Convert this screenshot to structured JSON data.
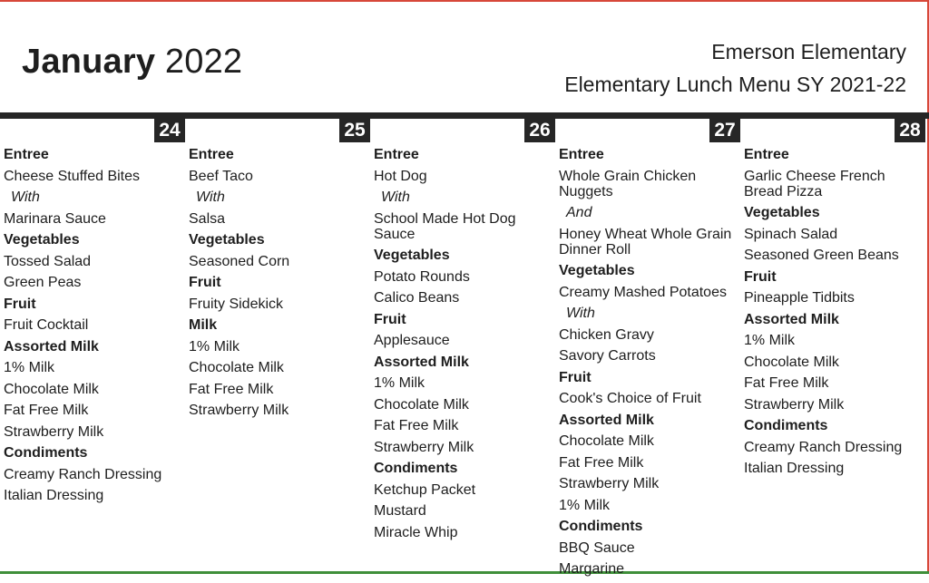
{
  "header": {
    "month": "January",
    "year": "2022",
    "school": "Emerson Elementary",
    "menu_title": "Elementary Lunch Menu SY 2021-22"
  },
  "colors": {
    "bar": "#262626",
    "accent_top": "#d7483a",
    "accent_right": "#d7483a",
    "accent_bottom": "#3f8f3a"
  },
  "days": [
    {
      "date": "24",
      "items": [
        {
          "text": "Entree",
          "kind": "head"
        },
        {
          "text": "Cheese Stuffed Bites",
          "kind": "item"
        },
        {
          "text": "With",
          "kind": "conn"
        },
        {
          "text": "Marinara Sauce",
          "kind": "item"
        },
        {
          "text": "Vegetables",
          "kind": "head"
        },
        {
          "text": "Tossed Salad",
          "kind": "item"
        },
        {
          "text": "Green Peas",
          "kind": "item"
        },
        {
          "text": "Fruit",
          "kind": "head"
        },
        {
          "text": "Fruit Cocktail",
          "kind": "item"
        },
        {
          "text": "Assorted Milk",
          "kind": "head"
        },
        {
          "text": "1% Milk",
          "kind": "item"
        },
        {
          "text": "Chocolate Milk",
          "kind": "item"
        },
        {
          "text": "Fat Free Milk",
          "kind": "item"
        },
        {
          "text": "Strawberry Milk",
          "kind": "item"
        },
        {
          "text": "Condiments",
          "kind": "head"
        },
        {
          "text": "Creamy Ranch Dressing",
          "kind": "item"
        },
        {
          "text": "Italian Dressing",
          "kind": "item"
        }
      ]
    },
    {
      "date": "25",
      "items": [
        {
          "text": "Entree",
          "kind": "head"
        },
        {
          "text": "Beef Taco",
          "kind": "item"
        },
        {
          "text": "With",
          "kind": "conn"
        },
        {
          "text": "Salsa",
          "kind": "item"
        },
        {
          "text": "Vegetables",
          "kind": "head"
        },
        {
          "text": "Seasoned Corn",
          "kind": "item"
        },
        {
          "text": "Fruit",
          "kind": "head"
        },
        {
          "text": "Fruity Sidekick",
          "kind": "item"
        },
        {
          "text": "Milk",
          "kind": "head"
        },
        {
          "text": "1% Milk",
          "kind": "item"
        },
        {
          "text": "Chocolate Milk",
          "kind": "item"
        },
        {
          "text": "Fat Free Milk",
          "kind": "item"
        },
        {
          "text": "Strawberry Milk",
          "kind": "item"
        }
      ]
    },
    {
      "date": "26",
      "items": [
        {
          "text": "Entree",
          "kind": "head"
        },
        {
          "text": "Hot Dog",
          "kind": "item"
        },
        {
          "text": "With",
          "kind": "conn"
        },
        {
          "text": "School Made Hot Dog Sauce",
          "kind": "item"
        },
        {
          "text": "Vegetables",
          "kind": "head"
        },
        {
          "text": "Potato Rounds",
          "kind": "item"
        },
        {
          "text": "Calico Beans",
          "kind": "item"
        },
        {
          "text": "Fruit",
          "kind": "head"
        },
        {
          "text": "Applesauce",
          "kind": "item"
        },
        {
          "text": "Assorted Milk",
          "kind": "head"
        },
        {
          "text": "1% Milk",
          "kind": "item"
        },
        {
          "text": "Chocolate Milk",
          "kind": "item"
        },
        {
          "text": "Fat Free Milk",
          "kind": "item"
        },
        {
          "text": "Strawberry Milk",
          "kind": "item"
        },
        {
          "text": "Condiments",
          "kind": "head"
        },
        {
          "text": "Ketchup Packet",
          "kind": "item"
        },
        {
          "text": "Mustard",
          "kind": "item"
        },
        {
          "text": "Miracle Whip",
          "kind": "item"
        }
      ]
    },
    {
      "date": "27",
      "items": [
        {
          "text": "Entree",
          "kind": "head"
        },
        {
          "text": "Whole Grain Chicken Nuggets",
          "kind": "item"
        },
        {
          "text": "And",
          "kind": "conn"
        },
        {
          "text": "Honey Wheat Whole Grain Dinner Roll",
          "kind": "item"
        },
        {
          "text": "Vegetables",
          "kind": "head"
        },
        {
          "text": "Creamy Mashed Potatoes",
          "kind": "item"
        },
        {
          "text": "With",
          "kind": "conn"
        },
        {
          "text": "Chicken Gravy",
          "kind": "item"
        },
        {
          "text": "Savory Carrots",
          "kind": "item"
        },
        {
          "text": "Fruit",
          "kind": "head"
        },
        {
          "text": "Cook's Choice of Fruit",
          "kind": "item"
        },
        {
          "text": "Assorted Milk",
          "kind": "head"
        },
        {
          "text": "Chocolate Milk",
          "kind": "item"
        },
        {
          "text": "Fat Free Milk",
          "kind": "item"
        },
        {
          "text": "Strawberry Milk",
          "kind": "item"
        },
        {
          "text": "1% Milk",
          "kind": "item"
        },
        {
          "text": "Condiments",
          "kind": "head"
        },
        {
          "text": "BBQ Sauce",
          "kind": "item"
        },
        {
          "text": "Margarine",
          "kind": "item"
        }
      ]
    },
    {
      "date": "28",
      "items": [
        {
          "text": "Entree",
          "kind": "head"
        },
        {
          "text": "Garlic Cheese French Bread Pizza",
          "kind": "item"
        },
        {
          "text": "Vegetables",
          "kind": "head"
        },
        {
          "text": "Spinach Salad",
          "kind": "item"
        },
        {
          "text": "Seasoned Green Beans",
          "kind": "item"
        },
        {
          "text": "Fruit",
          "kind": "head"
        },
        {
          "text": "Pineapple Tidbits",
          "kind": "item"
        },
        {
          "text": "Assorted Milk",
          "kind": "head"
        },
        {
          "text": "1% Milk",
          "kind": "item"
        },
        {
          "text": "Chocolate Milk",
          "kind": "item"
        },
        {
          "text": "Fat Free Milk",
          "kind": "item"
        },
        {
          "text": "Strawberry Milk",
          "kind": "item"
        },
        {
          "text": "Condiments",
          "kind": "head"
        },
        {
          "text": "Creamy Ranch Dressing",
          "kind": "item"
        },
        {
          "text": "Italian Dressing",
          "kind": "item"
        }
      ]
    }
  ]
}
